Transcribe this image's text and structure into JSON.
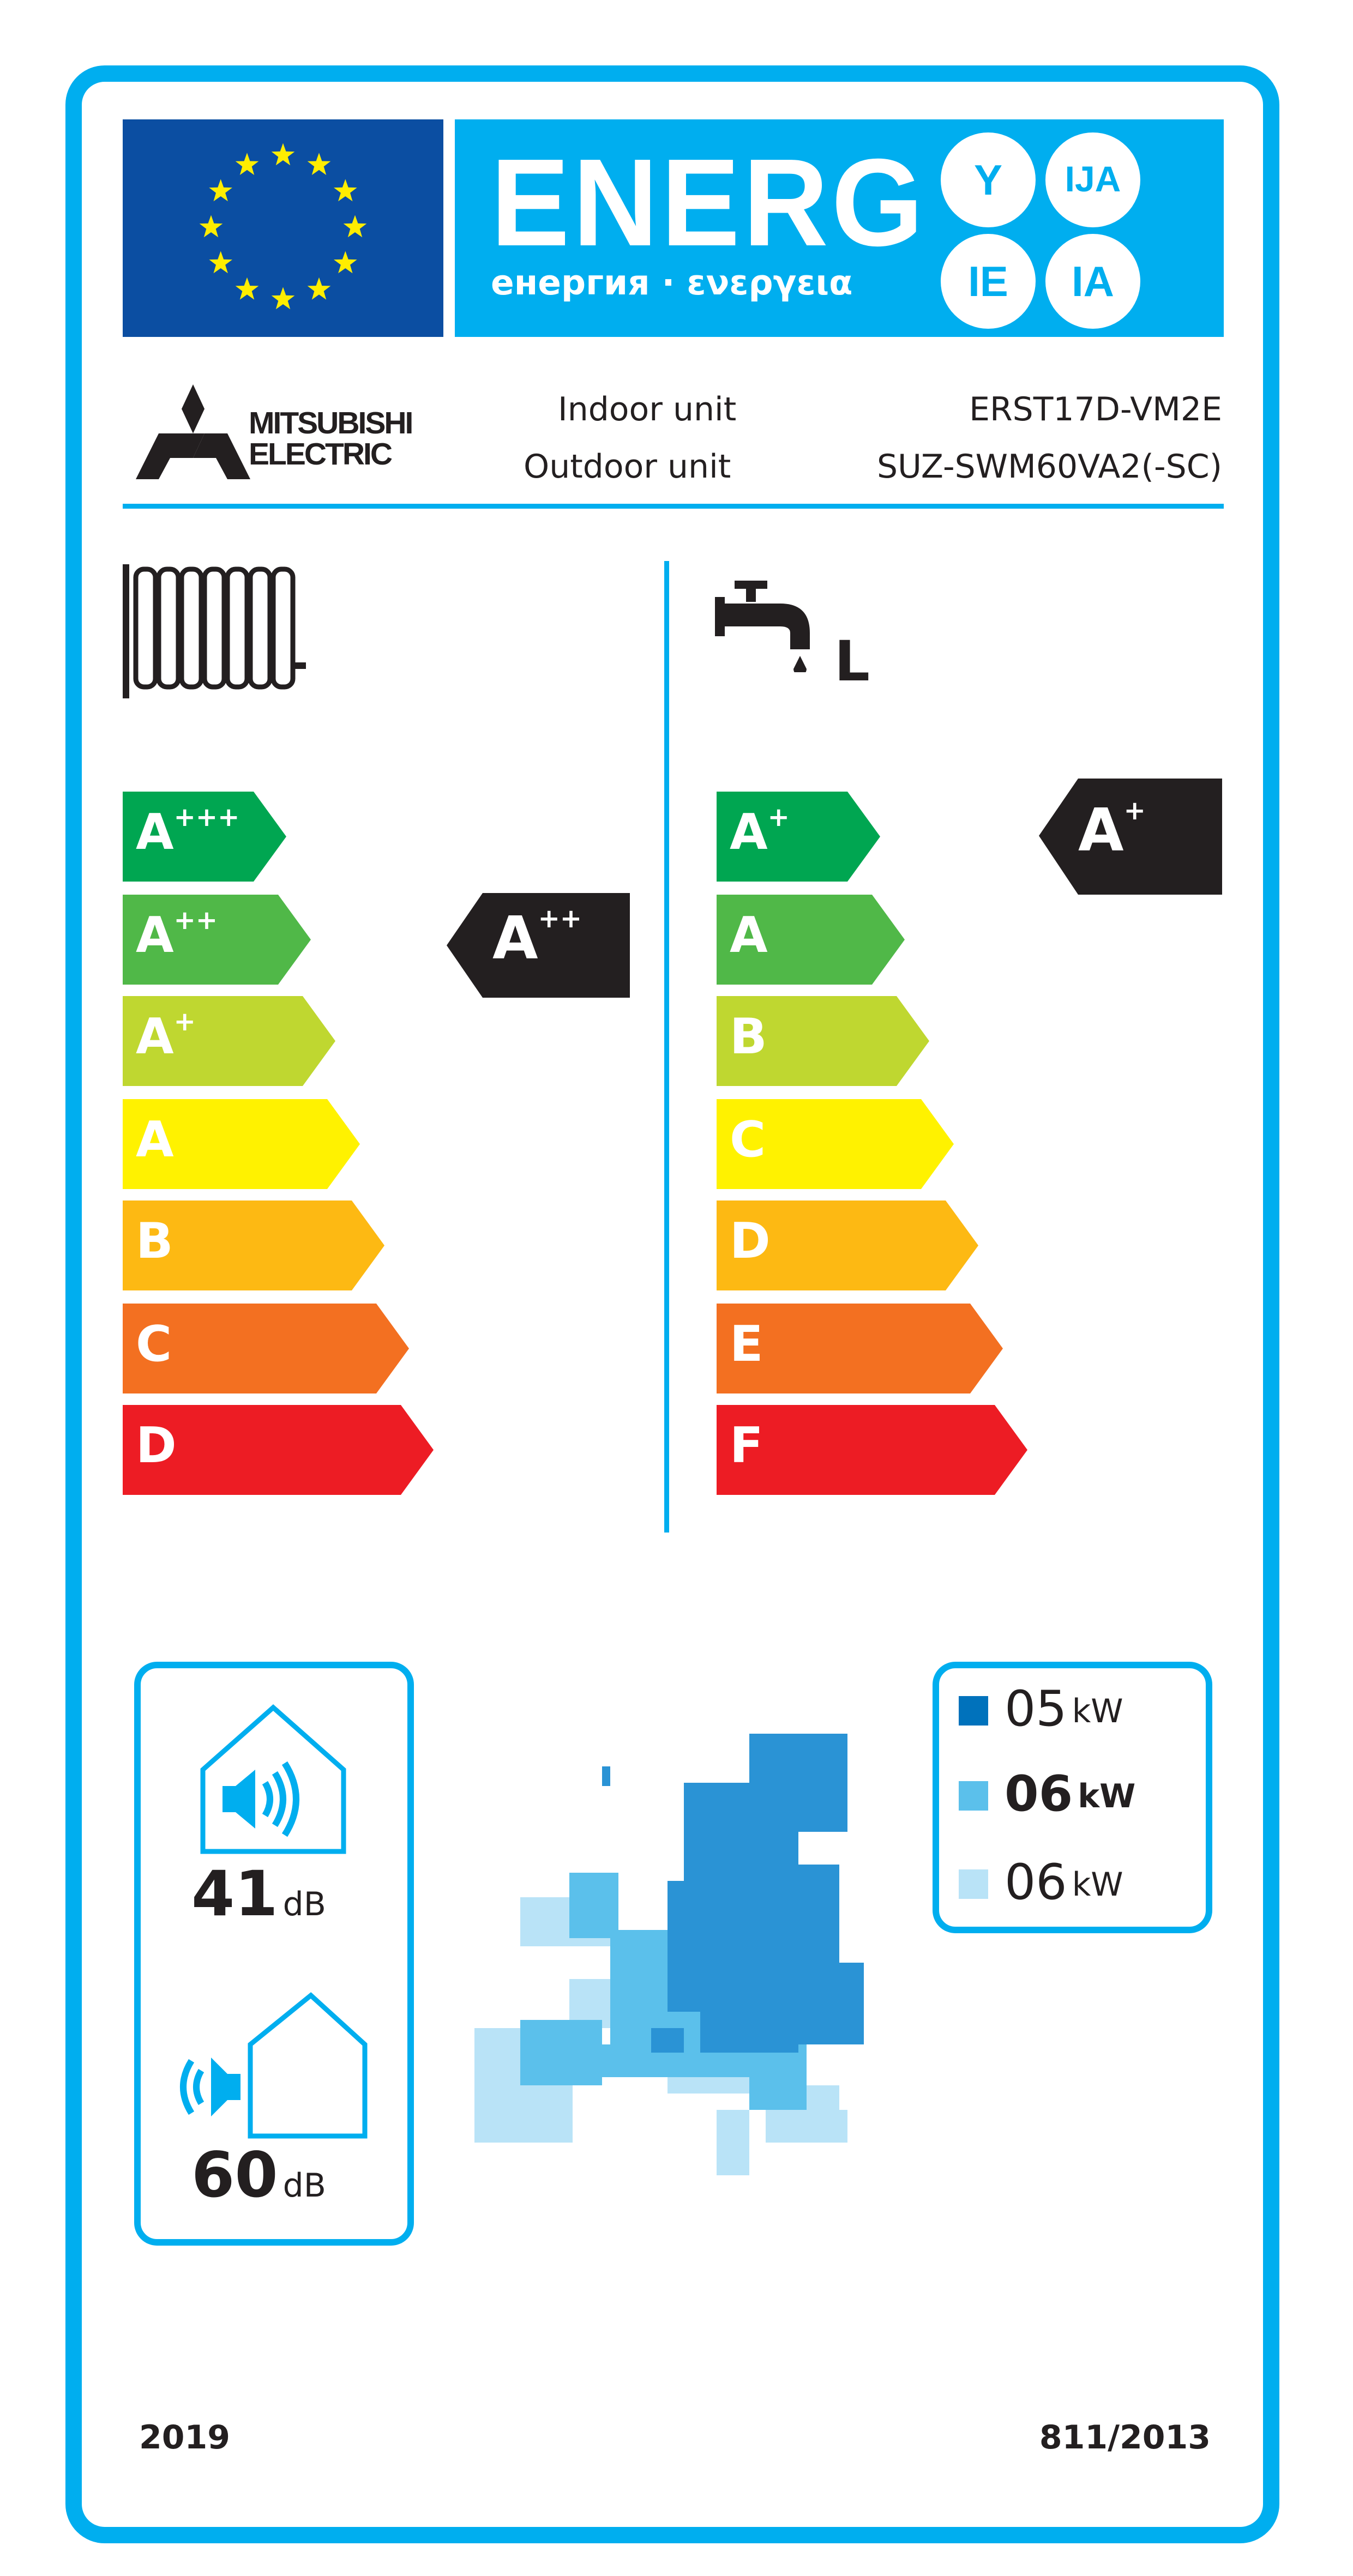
{
  "header": {
    "energy_word": "ENERG",
    "energy_subtitle": "енергия · ενεργεια",
    "language_suffixes": [
      "Y",
      "IJA",
      "IE",
      "IA"
    ]
  },
  "supplier": {
    "brand_line1": "MITSUBISHI",
    "brand_line2": "ELECTRIC",
    "indoor_label": "Indoor unit",
    "indoor_model": "ERST17D-VM2E",
    "outdoor_label": "Outdoor unit",
    "outdoor_model": "SUZ-SWM60VA2(-SC)"
  },
  "space_heating": {
    "icon": "radiator-icon",
    "scale": [
      {
        "letter": "A",
        "plus": "+++",
        "color": "#00a651"
      },
      {
        "letter": "A",
        "plus": "++",
        "color": "#50b848"
      },
      {
        "letter": "A",
        "plus": "+",
        "color": "#bfd730"
      },
      {
        "letter": "A",
        "plus": "",
        "color": "#fff200"
      },
      {
        "letter": "B",
        "plus": "",
        "color": "#fdb913"
      },
      {
        "letter": "C",
        "plus": "",
        "color": "#f37021"
      },
      {
        "letter": "D",
        "plus": "",
        "color": "#ed1c24"
      }
    ],
    "rating": {
      "letter": "A",
      "plus": "++"
    }
  },
  "water_heating": {
    "icon": "tap-icon",
    "load_profile": "L",
    "scale": [
      {
        "letter": "A",
        "plus": "+",
        "color": "#00a651"
      },
      {
        "letter": "A",
        "plus": "",
        "color": "#50b848"
      },
      {
        "letter": "B",
        "plus": "",
        "color": "#bfd730"
      },
      {
        "letter": "C",
        "plus": "",
        "color": "#fff200"
      },
      {
        "letter": "D",
        "plus": "",
        "color": "#fdb913"
      },
      {
        "letter": "E",
        "plus": "",
        "color": "#f37021"
      },
      {
        "letter": "F",
        "plus": "",
        "color": "#ed1c24"
      }
    ],
    "rating": {
      "letter": "A",
      "plus": "+"
    }
  },
  "noise": {
    "indoor_value": "41",
    "indoor_unit": "dB",
    "outdoor_value": "60",
    "outdoor_unit": "dB"
  },
  "heat_output": [
    {
      "value": "05",
      "unit": "kW",
      "color": "#0072bc",
      "bold": false
    },
    {
      "value": "06",
      "unit": "kW",
      "color": "#5bc0eb",
      "bold": true
    },
    {
      "value": "06",
      "unit": "kW",
      "color": "#b9e3f7",
      "bold": false
    }
  ],
  "footer": {
    "year": "2019",
    "regulation": "811/2013"
  },
  "colors": {
    "frame": "#00aeef",
    "eu_blue": "#0b4ea2",
    "indicator": "#231f20"
  }
}
